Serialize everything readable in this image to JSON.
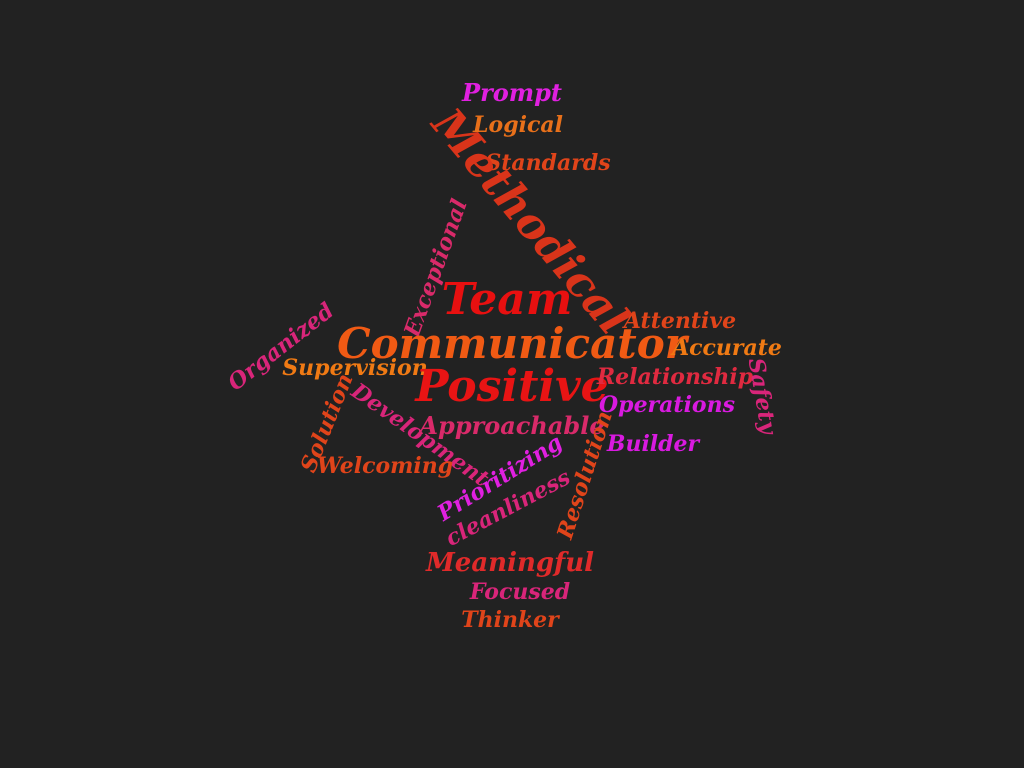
{
  "words": [
    {
      "text": "Prompt",
      "color": "#e020e0"
    },
    {
      "text": "Logical",
      "color": "#e8701a"
    },
    {
      "text": "Standards",
      "color": "#e0441a"
    },
    {
      "text": "Methodical",
      "color": "#d9341a"
    },
    {
      "text": "Exceptional",
      "color": "#d92a6a"
    },
    {
      "text": "Team",
      "color": "#e81010"
    },
    {
      "text": "Attentive",
      "color": "#e0441a"
    },
    {
      "text": "Organized",
      "color": "#d9257a"
    },
    {
      "text": "Communicator",
      "color": "#f05a14"
    },
    {
      "text": "Accurate",
      "color": "#f07a14"
    },
    {
      "text": "Supervision",
      "color": "#f07a14"
    },
    {
      "text": "Positive",
      "color": "#e81414"
    },
    {
      "text": "Relationship",
      "color": "#e02a40"
    },
    {
      "text": "Safety",
      "color": "#d9257a"
    },
    {
      "text": "Operations",
      "color": "#d91ae0"
    },
    {
      "text": "Solution",
      "color": "#e0441a"
    },
    {
      "text": "Development",
      "color": "#d9257a"
    },
    {
      "text": "Approachable",
      "color": "#d92a6a"
    },
    {
      "text": "Builder",
      "color": "#d91ae0"
    },
    {
      "text": "Resolution",
      "color": "#e0441a"
    },
    {
      "text": "Welcoming",
      "color": "#e0441a"
    },
    {
      "text": "Prioritizing",
      "color": "#e020e0"
    },
    {
      "text": "cleanliness",
      "color": "#d9257a"
    },
    {
      "text": "Meaningful",
      "color": "#e02a2a"
    },
    {
      "text": "Focused",
      "color": "#d9257a"
    },
    {
      "text": "Thinker",
      "color": "#e0441a"
    }
  ]
}
